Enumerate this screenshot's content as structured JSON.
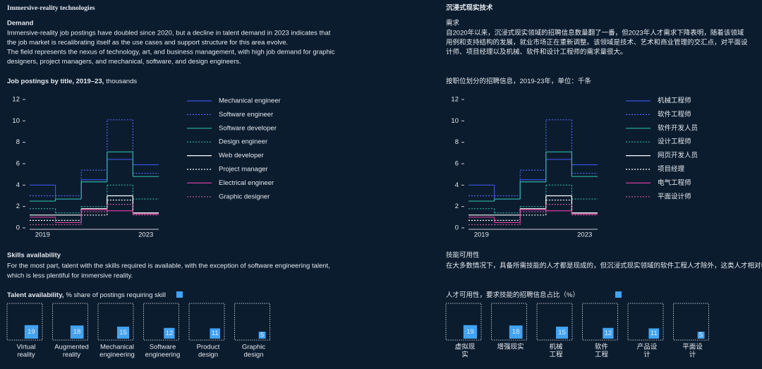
{
  "panels": [
    {
      "title": "Immersive-reality technologies",
      "demand_heading": "Demand",
      "demand_lines": [
        "Immersive-reality job postings have doubled since 2020, but a decline in talent demand in 2023 indicates that",
        "the job market is recalibrating itself as the use cases and support structure for this area evolve.",
        "The field represents the nexus of technology, art, and business management, with high job demand for graphic",
        "designers, project managers, and mechanical, software, and design engineers."
      ],
      "skills_heading": "Skills availability",
      "skills_lines": [
        "For the most part, talent with the skills required is available, with the exception of software engineering talent,",
        "which is less plentiful for immersive reality."
      ]
    },
    {
      "title": "沉浸式现实技术",
      "demand_heading": "需求",
      "demand_lines": [
        "自2020年以来，沉浸式现实领域的招聘信息数量翻了一番，但2023年人才需求下降表明，随着该领域",
        "用例和支持结构的发展，就业市场正在重新调整。该领域是技术、艺术和商业管理的交汇点，对平面设",
        "计师、项目经理以及机械、软件和设计工程师的需求量很大。"
      ],
      "skills_heading": "技能可用性",
      "skills_lines": [
        "在大多数情况下，具备所需技能的人才都是现成的，但沉浸式现实领域的软件工程人才除外，这类人才相对稀缺。"
      ]
    }
  ],
  "chart_data": [
    {
      "type": "line",
      "step": "mid",
      "title": "Job postings by title, 2019–23,",
      "unit": "thousands",
      "x": [
        2019,
        2020,
        2021,
        2022,
        2023
      ],
      "xlim": [
        2018.5,
        2023.5
      ],
      "xticks": [
        2019,
        2023
      ],
      "ylim": [
        0,
        12
      ],
      "yticks": [
        0,
        2,
        4,
        6,
        8,
        10,
        12
      ],
      "series": [
        {
          "name": "Mechanical engineer",
          "color": "#3d52e0",
          "line_style": "solid",
          "values": [
            4.0,
            2.7,
            4.5,
            6.4,
            5.9
          ]
        },
        {
          "name": "Software engineer",
          "color": "#4f63f0",
          "line_style": "dotted",
          "values": [
            3.0,
            3.0,
            5.4,
            10.1,
            5.1
          ]
        },
        {
          "name": "Software developer",
          "color": "#2fb3a3",
          "line_style": "solid",
          "values": [
            2.5,
            2.7,
            4.3,
            7.1,
            4.8
          ]
        },
        {
          "name": "Design engineer",
          "color": "#2fb3a3",
          "line_style": "dotted",
          "values": [
            1.8,
            1.4,
            2.0,
            4.0,
            2.7
          ]
        },
        {
          "name": "Web developer",
          "color": "#ffffff",
          "line_style": "solid",
          "values": [
            1.2,
            1.2,
            1.8,
            3.0,
            1.4
          ]
        },
        {
          "name": "Project manager",
          "color": "#ffffff",
          "line_style": "dotted",
          "values": [
            0.7,
            0.7,
            1.2,
            2.6,
            1.3
          ]
        },
        {
          "name": "Electrical engineer",
          "color": "#d23c9c",
          "line_style": "solid",
          "values": [
            1.0,
            0.5,
            1.7,
            1.6,
            1.3
          ]
        },
        {
          "name": "Graphic designer",
          "color": "#c9569a",
          "line_style": "dotted",
          "values": [
            0.3,
            0.3,
            1.5,
            2.2,
            1.2
          ]
        }
      ]
    },
    {
      "type": "square",
      "title": "Talent availability,",
      "unit": "% share of postings requiring skill",
      "color": "#42a3f2",
      "categories": [
        [
          "Virtual",
          "reality"
        ],
        [
          "Augmented",
          "reality"
        ],
        [
          "Mechanical",
          "engineering"
        ],
        [
          "Software",
          "engineering"
        ],
        [
          "Product",
          "design"
        ],
        [
          "Graphic",
          "design"
        ]
      ],
      "values": [
        19,
        18,
        15,
        12,
        11,
        5
      ]
    },
    {
      "type": "line",
      "step": "mid",
      "title": "按职位划分的招聘信息，2019-23年，单位：千条",
      "x": [
        2019,
        2020,
        2021,
        2022,
        2023
      ],
      "xlim": [
        2018.5,
        2023.5
      ],
      "xticks": [
        2019,
        2023
      ],
      "ylim": [
        0,
        12
      ],
      "yticks": [
        0,
        2,
        4,
        6,
        8,
        10,
        12
      ],
      "series": [
        {
          "name": "机械工程师",
          "color": "#3d52e0",
          "line_style": "solid",
          "values": [
            4.0,
            2.7,
            4.5,
            6.4,
            5.9
          ]
        },
        {
          "name": "软件工程师",
          "color": "#4f63f0",
          "line_style": "dotted",
          "values": [
            3.0,
            3.0,
            5.4,
            10.1,
            5.1
          ]
        },
        {
          "name": "软件开发人员",
          "color": "#2fb3a3",
          "line_style": "solid",
          "values": [
            2.5,
            2.7,
            4.3,
            7.1,
            4.8
          ]
        },
        {
          "name": "设计工程师",
          "color": "#2fb3a3",
          "line_style": "dotted",
          "values": [
            1.8,
            1.4,
            2.0,
            4.0,
            2.7
          ]
        },
        {
          "name": "网页开发人员",
          "color": "#ffffff",
          "line_style": "solid",
          "values": [
            1.2,
            1.2,
            1.8,
            3.0,
            1.4
          ]
        },
        {
          "name": "项目经理",
          "color": "#ffffff",
          "line_style": "dotted",
          "values": [
            0.7,
            0.7,
            1.2,
            2.6,
            1.3
          ]
        },
        {
          "name": "电气工程师",
          "color": "#d23c9c",
          "line_style": "solid",
          "values": [
            1.0,
            0.5,
            1.7,
            1.6,
            1.3
          ]
        },
        {
          "name": "平面设计师",
          "color": "#c9569a",
          "line_style": "dotted",
          "values": [
            0.3,
            0.3,
            1.5,
            2.2,
            1.2
          ]
        }
      ]
    },
    {
      "type": "square",
      "title": "人才可用性，要求技能的招聘信息占比（%）",
      "color": "#42a3f2",
      "categories": [
        [
          "虚拟现",
          "实"
        ],
        [
          "增强现实"
        ],
        [
          "机械",
          "工程"
        ],
        [
          "软件",
          "工程"
        ],
        [
          "产品设",
          "计"
        ],
        [
          "平面设",
          "计"
        ]
      ],
      "values": [
        19,
        18,
        15,
        12,
        11,
        5
      ]
    }
  ]
}
